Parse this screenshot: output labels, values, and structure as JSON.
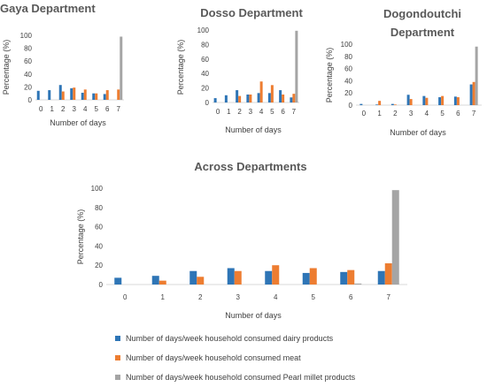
{
  "chart_data": [
    {
      "type": "bar",
      "title": "Gaya Department",
      "xlabel": "Number of days",
      "ylabel": "Percentage (%)",
      "ylim": [
        0,
        100
      ],
      "yticks": [
        "0",
        "20",
        "40",
        "60",
        "80",
        "100"
      ],
      "categories": [
        "0",
        "1",
        "2",
        "3",
        "4",
        "5",
        "6",
        "7"
      ],
      "series": [
        {
          "name": "Number of days/week household consumed dairy products",
          "values": [
            14,
            15,
            23,
            18,
            11,
            10,
            9,
            0
          ]
        },
        {
          "name": "Number of days/week household consumed meat",
          "values": [
            0,
            0,
            13,
            19,
            16,
            10,
            15,
            16
          ]
        },
        {
          "name": "Number of days/week household consumed Pearl millet products",
          "values": [
            0,
            0,
            0,
            0,
            0,
            0,
            0,
            98
          ]
        }
      ]
    },
    {
      "type": "bar",
      "title": "Dosso Department",
      "xlabel": "Number of days",
      "ylabel": "Percentage (%)",
      "ylim": [
        0,
        100
      ],
      "yticks": [
        "0",
        "20",
        "40",
        "60",
        "80",
        "100"
      ],
      "categories": [
        "0",
        "1",
        "2",
        "3",
        "4",
        "5",
        "6",
        "7"
      ],
      "series": [
        {
          "name": "Number of days/week household consumed dairy products",
          "values": [
            6,
            10,
            17,
            11,
            13,
            13,
            17,
            7
          ]
        },
        {
          "name": "Number of days/week household consumed meat",
          "values": [
            0,
            0,
            9,
            11,
            29,
            24,
            11,
            12
          ]
        },
        {
          "name": "Number of days/week household consumed Pearl millet products",
          "values": [
            0,
            0,
            0,
            0,
            0,
            0,
            0,
            99
          ]
        }
      ]
    },
    {
      "type": "bar",
      "title": "Dogondoutchi Department",
      "xlabel": "Number of days",
      "ylabel": "Percentage (%)",
      "ylim": [
        0,
        100
      ],
      "yticks": [
        "0",
        "20",
        "40",
        "60",
        "80",
        "100"
      ],
      "categories": [
        "0",
        "1",
        "2",
        "3",
        "4",
        "5",
        "6",
        "7"
      ],
      "series": [
        {
          "name": "Number of days/week household consumed dairy products",
          "values": [
            2,
            1,
            2,
            17,
            15,
            13,
            14,
            34
          ]
        },
        {
          "name": "Number of days/week household consumed meat",
          "values": [
            0,
            7,
            1,
            10,
            12,
            15,
            13,
            38
          ]
        },
        {
          "name": "Number of days/week household consumed Pearl millet products",
          "values": [
            0,
            0,
            0,
            0,
            0,
            0,
            0,
            96
          ]
        }
      ]
    },
    {
      "type": "bar",
      "title": "Across Departments",
      "xlabel": "Number of days",
      "ylabel": "Percentage (%)",
      "ylim": [
        0,
        100
      ],
      "yticks": [
        "0",
        "20",
        "40",
        "60",
        "80",
        "100"
      ],
      "categories": [
        "0",
        "1",
        "2",
        "3",
        "4",
        "5",
        "6",
        "7"
      ],
      "series": [
        {
          "name": "Number of days/week household consumed dairy products",
          "values": [
            7,
            9,
            14,
            17,
            14,
            12,
            13,
            14
          ]
        },
        {
          "name": "Number of days/week household consumed meat",
          "values": [
            0,
            4,
            8,
            14,
            20,
            17,
            15,
            22
          ]
        },
        {
          "name": "Number of days/week household consumed Pearl millet products",
          "values": [
            0,
            0,
            0,
            0,
            0,
            0,
            1,
            98
          ]
        }
      ],
      "legend_position": "bottom"
    }
  ],
  "colors": {
    "dairy": "#2e75b6",
    "meat": "#ed7d31",
    "millet": "#a5a5a5",
    "title": "#595959",
    "axis_text": "#404040",
    "axis_line": "#d9d9d9"
  }
}
